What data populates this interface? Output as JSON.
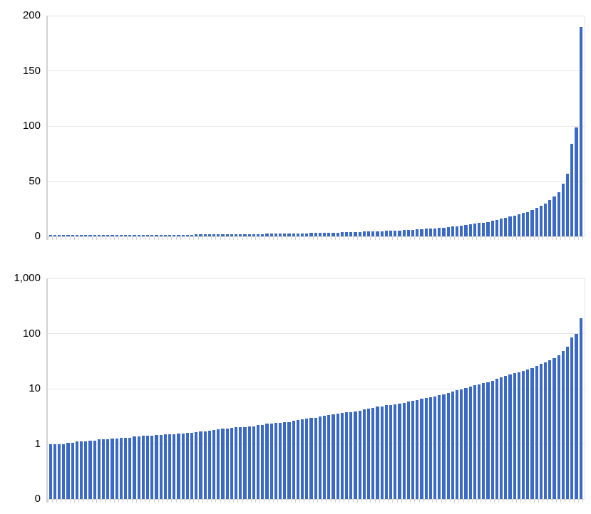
{
  "page": {
    "background_color": "#ffffff",
    "title": "",
    "bar_color": "#3b6ac6",
    "gridline_color": "#e7e7e7",
    "axis_label_color": "#000000"
  },
  "chart_data": [
    {
      "id": "linear",
      "type": "bar",
      "scale": "linear",
      "title": "",
      "xlabel": "",
      "ylabel": "",
      "ylim": [
        0,
        200
      ],
      "y_tick_labels": [
        "0",
        "50",
        "100",
        "150",
        "200"
      ],
      "y_tick_values": [
        0,
        50,
        100,
        150,
        200
      ],
      "grid": true,
      "legend": "none",
      "x_tick_labels_shown": false,
      "bar_color": "#3b6ac6",
      "n_bars": 121,
      "values": [
        1.0,
        1.0,
        1.0,
        1.0,
        1.05,
        1.05,
        1.1,
        1.1,
        1.1,
        1.15,
        1.15,
        1.2,
        1.2,
        1.2,
        1.25,
        1.25,
        1.3,
        1.3,
        1.3,
        1.35,
        1.35,
        1.4,
        1.4,
        1.4,
        1.45,
        1.45,
        1.5,
        1.5,
        1.5,
        1.55,
        1.55,
        1.6,
        1.6,
        1.65,
        1.7,
        1.7,
        1.75,
        1.8,
        1.85,
        1.9,
        1.9,
        1.95,
        2.0,
        2.0,
        2.0,
        2.1,
        2.1,
        2.2,
        2.2,
        2.3,
        2.3,
        2.4,
        2.4,
        2.5,
        2.5,
        2.6,
        2.7,
        2.8,
        2.9,
        3.0,
        3.0,
        3.1,
        3.2,
        3.3,
        3.4,
        3.5,
        3.6,
        3.7,
        3.8,
        3.9,
        4.0,
        4.2,
        4.4,
        4.5,
        4.7,
        4.8,
        5.0,
        5.0,
        5.2,
        5.4,
        5.6,
        5.8,
        6.0,
        6.2,
        6.5,
        6.8,
        7.0,
        7.3,
        7.6,
        8.0,
        8.4,
        8.8,
        9.3,
        9.8,
        10.4,
        11,
        11.5,
        12,
        12.5,
        13,
        14,
        15,
        16,
        17,
        18,
        19,
        20,
        21,
        22,
        24,
        26,
        28,
        30,
        33,
        36,
        40,
        48,
        57,
        84,
        99,
        190
      ]
    },
    {
      "id": "log",
      "type": "bar",
      "scale": "log",
      "title": "",
      "xlabel": "",
      "ylabel": "",
      "ylim": [
        0,
        1000
      ],
      "y_tick_labels": [
        "0",
        "1",
        "10",
        "100",
        "1,000"
      ],
      "y_tick_values": [
        0,
        1,
        10,
        100,
        1000
      ],
      "grid": true,
      "legend": "none",
      "x_tick_labels_shown": false,
      "bar_color": "#3b6ac6",
      "n_bars": 121,
      "values": [
        1.0,
        1.0,
        1.0,
        1.0,
        1.05,
        1.05,
        1.1,
        1.1,
        1.1,
        1.15,
        1.15,
        1.2,
        1.2,
        1.2,
        1.25,
        1.25,
        1.3,
        1.3,
        1.3,
        1.35,
        1.35,
        1.4,
        1.4,
        1.4,
        1.45,
        1.45,
        1.5,
        1.5,
        1.5,
        1.55,
        1.55,
        1.6,
        1.6,
        1.65,
        1.7,
        1.7,
        1.75,
        1.8,
        1.85,
        1.9,
        1.9,
        1.95,
        2.0,
        2.0,
        2.0,
        2.1,
        2.1,
        2.2,
        2.2,
        2.3,
        2.3,
        2.4,
        2.4,
        2.5,
        2.5,
        2.6,
        2.7,
        2.8,
        2.9,
        3.0,
        3.0,
        3.1,
        3.2,
        3.3,
        3.4,
        3.5,
        3.6,
        3.7,
        3.8,
        3.9,
        4.0,
        4.2,
        4.4,
        4.5,
        4.7,
        4.8,
        5.0,
        5.0,
        5.2,
        5.4,
        5.6,
        5.8,
        6.0,
        6.2,
        6.5,
        6.8,
        7.0,
        7.3,
        7.6,
        8.0,
        8.4,
        8.8,
        9.3,
        9.8,
        10.4,
        11,
        11.5,
        12,
        12.5,
        13,
        14,
        15,
        16,
        17,
        18,
        19,
        20,
        21,
        22,
        24,
        26,
        28,
        30,
        33,
        36,
        40,
        48,
        57,
        84,
        99,
        190
      ]
    }
  ]
}
